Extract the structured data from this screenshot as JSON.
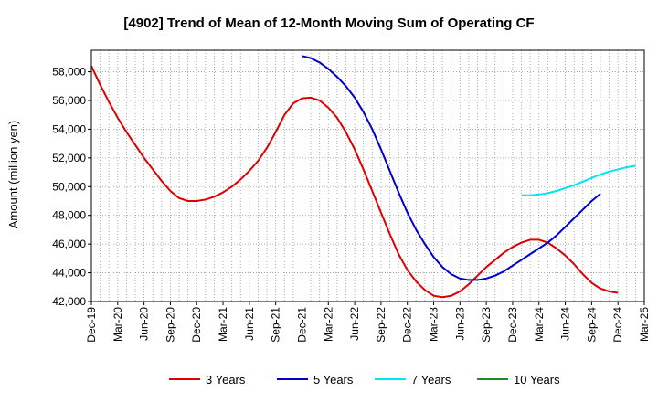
{
  "chart_data": {
    "type": "line",
    "title": "[4902]  Trend of Mean of 12-Month Moving Sum of Operating CF",
    "ylabel": "Amount (million yen)",
    "xlabel": "",
    "ylim": [
      42000,
      59500
    ],
    "yticks": [
      42000,
      44000,
      46000,
      48000,
      50000,
      52000,
      54000,
      56000,
      58000
    ],
    "ytick_labels": [
      "42,000",
      "44,000",
      "46,000",
      "48,000",
      "50,000",
      "52,000",
      "54,000",
      "56,000",
      "58,000"
    ],
    "x_range_months": [
      0,
      63
    ],
    "xticks": [
      {
        "m": 0,
        "label": "Dec-19"
      },
      {
        "m": 3,
        "label": "Mar-20"
      },
      {
        "m": 6,
        "label": "Jun-20"
      },
      {
        "m": 9,
        "label": "Sep-20"
      },
      {
        "m": 12,
        "label": "Dec-20"
      },
      {
        "m": 15,
        "label": "Mar-21"
      },
      {
        "m": 18,
        "label": "Jun-21"
      },
      {
        "m": 21,
        "label": "Sep-21"
      },
      {
        "m": 24,
        "label": "Dec-21"
      },
      {
        "m": 27,
        "label": "Mar-22"
      },
      {
        "m": 30,
        "label": "Jun-22"
      },
      {
        "m": 33,
        "label": "Sep-22"
      },
      {
        "m": 36,
        "label": "Dec-22"
      },
      {
        "m": 39,
        "label": "Mar-23"
      },
      {
        "m": 42,
        "label": "Jun-23"
      },
      {
        "m": 45,
        "label": "Sep-23"
      },
      {
        "m": 48,
        "label": "Dec-23"
      },
      {
        "m": 51,
        "label": "Mar-24"
      },
      {
        "m": 54,
        "label": "Jun-24"
      },
      {
        "m": 57,
        "label": "Sep-24"
      },
      {
        "m": 60,
        "label": "Dec-24"
      },
      {
        "m": 63,
        "label": "Mar-25"
      }
    ],
    "grid": true,
    "legend_position": "bottom",
    "series": [
      {
        "name": "3 Years",
        "color": "#dd0000",
        "points": [
          [
            0,
            58400
          ],
          [
            1,
            57100
          ],
          [
            2,
            55900
          ],
          [
            3,
            54800
          ],
          [
            4,
            53800
          ],
          [
            5,
            52900
          ],
          [
            6,
            52000
          ],
          [
            7,
            51200
          ],
          [
            8,
            50400
          ],
          [
            9,
            49700
          ],
          [
            10,
            49200
          ],
          [
            11,
            49000
          ],
          [
            12,
            49000
          ],
          [
            13,
            49100
          ],
          [
            14,
            49300
          ],
          [
            15,
            49600
          ],
          [
            16,
            50000
          ],
          [
            17,
            50500
          ],
          [
            18,
            51100
          ],
          [
            19,
            51800
          ],
          [
            20,
            52700
          ],
          [
            21,
            53800
          ],
          [
            22,
            55000
          ],
          [
            23,
            55800
          ],
          [
            24,
            56150
          ],
          [
            25,
            56200
          ],
          [
            26,
            56000
          ],
          [
            27,
            55500
          ],
          [
            28,
            54800
          ],
          [
            29,
            53800
          ],
          [
            30,
            52600
          ],
          [
            31,
            51200
          ],
          [
            32,
            49700
          ],
          [
            33,
            48200
          ],
          [
            34,
            46700
          ],
          [
            35,
            45300
          ],
          [
            36,
            44200
          ],
          [
            37,
            43400
          ],
          [
            38,
            42800
          ],
          [
            39,
            42400
          ],
          [
            40,
            42300
          ],
          [
            41,
            42400
          ],
          [
            42,
            42700
          ],
          [
            43,
            43200
          ],
          [
            44,
            43800
          ],
          [
            45,
            44400
          ],
          [
            46,
            44900
          ],
          [
            47,
            45400
          ],
          [
            48,
            45800
          ],
          [
            49,
            46100
          ],
          [
            50,
            46300
          ],
          [
            51,
            46300
          ],
          [
            52,
            46100
          ],
          [
            53,
            45700
          ],
          [
            54,
            45200
          ],
          [
            55,
            44600
          ],
          [
            56,
            43900
          ],
          [
            57,
            43300
          ],
          [
            58,
            42900
          ],
          [
            59,
            42700
          ],
          [
            60,
            42600
          ]
        ]
      },
      {
        "name": "5 Years",
        "color": "#0000cc",
        "points": [
          [
            24,
            59100
          ],
          [
            25,
            58950
          ],
          [
            26,
            58650
          ],
          [
            27,
            58200
          ],
          [
            28,
            57650
          ],
          [
            29,
            57000
          ],
          [
            30,
            56200
          ],
          [
            31,
            55200
          ],
          [
            32,
            54000
          ],
          [
            33,
            52600
          ],
          [
            34,
            51100
          ],
          [
            35,
            49600
          ],
          [
            36,
            48200
          ],
          [
            37,
            47000
          ],
          [
            38,
            46000
          ],
          [
            39,
            45100
          ],
          [
            40,
            44400
          ],
          [
            41,
            43900
          ],
          [
            42,
            43600
          ],
          [
            43,
            43500
          ],
          [
            44,
            43500
          ],
          [
            45,
            43600
          ],
          [
            46,
            43800
          ],
          [
            47,
            44100
          ],
          [
            48,
            44500
          ],
          [
            49,
            44900
          ],
          [
            50,
            45300
          ],
          [
            51,
            45700
          ],
          [
            52,
            46100
          ],
          [
            53,
            46600
          ],
          [
            54,
            47200
          ],
          [
            55,
            47800
          ],
          [
            56,
            48400
          ],
          [
            57,
            49000
          ],
          [
            58,
            49500
          ]
        ]
      },
      {
        "name": "7 Years",
        "color": "#00e5ee",
        "points": [
          [
            49,
            49400
          ],
          [
            50,
            49400
          ],
          [
            51,
            49450
          ],
          [
            52,
            49550
          ],
          [
            53,
            49700
          ],
          [
            54,
            49900
          ],
          [
            55,
            50100
          ],
          [
            56,
            50350
          ],
          [
            57,
            50600
          ],
          [
            58,
            50850
          ],
          [
            59,
            51050
          ],
          [
            60,
            51200
          ],
          [
            61,
            51350
          ],
          [
            62,
            51450
          ]
        ]
      },
      {
        "name": "10 Years",
        "color": "#228b22",
        "points": []
      }
    ]
  }
}
